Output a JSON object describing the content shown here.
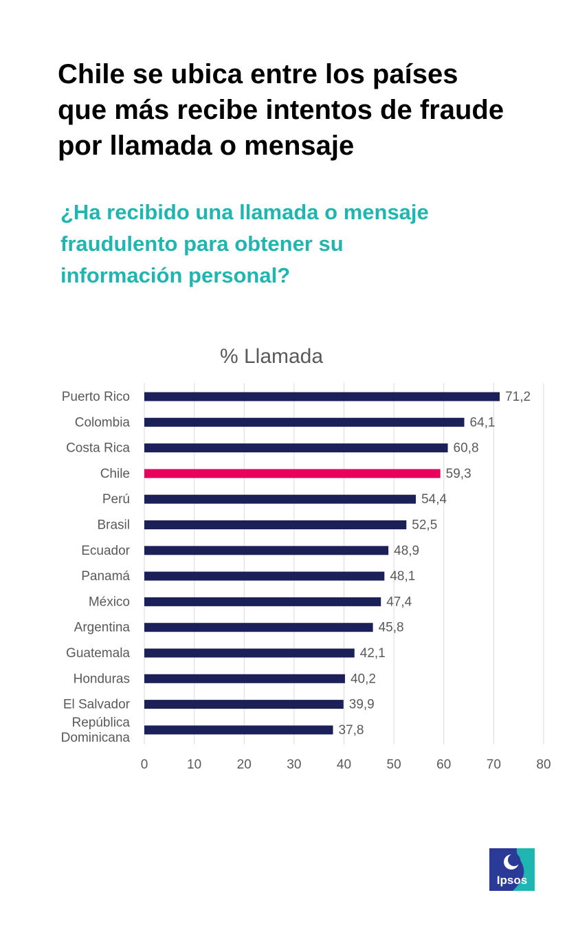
{
  "headline": "Chile se ubica entre los países\nque más recibe intentos de fraude\npor  llamada o mensaje",
  "question": "¿Ha recibido una llamada o mensaje\nfraudulento para obtener su\ninformación personal?",
  "colors": {
    "headline": "#000000",
    "question": "#1fb5b0",
    "bar": "#1c2058",
    "highlight": "#e8005a",
    "grid": "#d9d9d9",
    "text": "#595959",
    "logo_blue": "#2a3a96",
    "logo_teal": "#1fb5b0"
  },
  "logo": {
    "text": "Ipsos"
  },
  "chart_data": {
    "type": "bar",
    "orientation": "horizontal",
    "title": "% Llamada",
    "xlabel": "",
    "ylabel": "",
    "xlim": [
      0,
      80
    ],
    "xticks": [
      "0",
      "10",
      "20",
      "30",
      "40",
      "50",
      "60",
      "70",
      "80"
    ],
    "grid": "vertical",
    "highlight": "Chile",
    "categories": [
      "Puerto Rico",
      "Colombia",
      "Costa Rica",
      "Chile",
      "Perú",
      "Brasil",
      "Ecuador",
      "Panamá",
      "México",
      "Argentina",
      "Guatemala",
      "Honduras",
      "El Salvador",
      "República Dominicana"
    ],
    "category_lines": [
      [
        "Puerto Rico"
      ],
      [
        "Colombia"
      ],
      [
        "Costa Rica"
      ],
      [
        "Chile"
      ],
      [
        "Perú"
      ],
      [
        "Brasil"
      ],
      [
        "Ecuador"
      ],
      [
        "Panamá"
      ],
      [
        "México"
      ],
      [
        "Argentina"
      ],
      [
        "Guatemala"
      ],
      [
        "Honduras"
      ],
      [
        "El Salvador"
      ],
      [
        "República",
        "Dominicana"
      ]
    ],
    "values": [
      71.2,
      64.1,
      60.8,
      59.3,
      54.4,
      52.5,
      48.9,
      48.1,
      47.4,
      45.8,
      42.1,
      40.2,
      39.9,
      37.8
    ],
    "value_labels": [
      "71,2",
      "64,1",
      "60,8",
      "59,3",
      "54,4",
      "52,5",
      "48,9",
      "48,1",
      "47,4",
      "45,8",
      "42,1",
      "40,2",
      "39,9",
      "37,8"
    ]
  }
}
